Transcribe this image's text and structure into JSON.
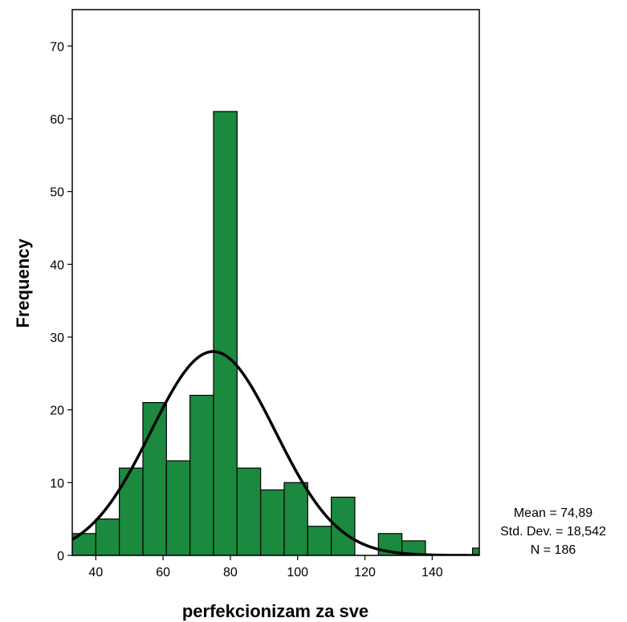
{
  "chart_data": {
    "type": "bar",
    "subtype": "histogram",
    "xlabel": "perfekcionizam za sve",
    "ylabel": "Frequency",
    "xlim": [
      33,
      154
    ],
    "ylim": [
      0,
      75
    ],
    "bin_width": 7,
    "bins": [
      {
        "start": 33,
        "end": 40,
        "count": 3
      },
      {
        "start": 40,
        "end": 47,
        "count": 5
      },
      {
        "start": 47,
        "end": 54,
        "count": 12
      },
      {
        "start": 54,
        "end": 61,
        "count": 21
      },
      {
        "start": 61,
        "end": 68,
        "count": 13
      },
      {
        "start": 68,
        "end": 75,
        "count": 22
      },
      {
        "start": 75,
        "end": 82,
        "count": 61
      },
      {
        "start": 82,
        "end": 89,
        "count": 12
      },
      {
        "start": 89,
        "end": 96,
        "count": 9
      },
      {
        "start": 96,
        "end": 103,
        "count": 10
      },
      {
        "start": 103,
        "end": 110,
        "count": 4
      },
      {
        "start": 110,
        "end": 117,
        "count": 8
      },
      {
        "start": 117,
        "end": 124,
        "count": 0
      },
      {
        "start": 124,
        "end": 131,
        "count": 3
      },
      {
        "start": 131,
        "end": 138,
        "count": 2
      },
      {
        "start": 138,
        "end": 145,
        "count": 0
      },
      {
        "start": 145,
        "end": 152,
        "count": 0
      },
      {
        "start": 152,
        "end": 159,
        "count": 1
      }
    ],
    "x_ticks": [
      "40",
      "60",
      "80",
      "100",
      "120",
      "140"
    ],
    "y_ticks": [
      "0",
      "10",
      "20",
      "30",
      "40",
      "50",
      "60",
      "70"
    ],
    "normal_curve": {
      "mean": 74.89,
      "std": 18.542,
      "n": 186
    },
    "stats_text": [
      "Mean = 74,89",
      "Std. Dev. = 18,542",
      "N = 186"
    ],
    "colors": {
      "bar_fill": "#1b8a3f",
      "bar_stroke": "#000000",
      "curve": "#000000",
      "frame": "#000000"
    },
    "grid": false
  }
}
